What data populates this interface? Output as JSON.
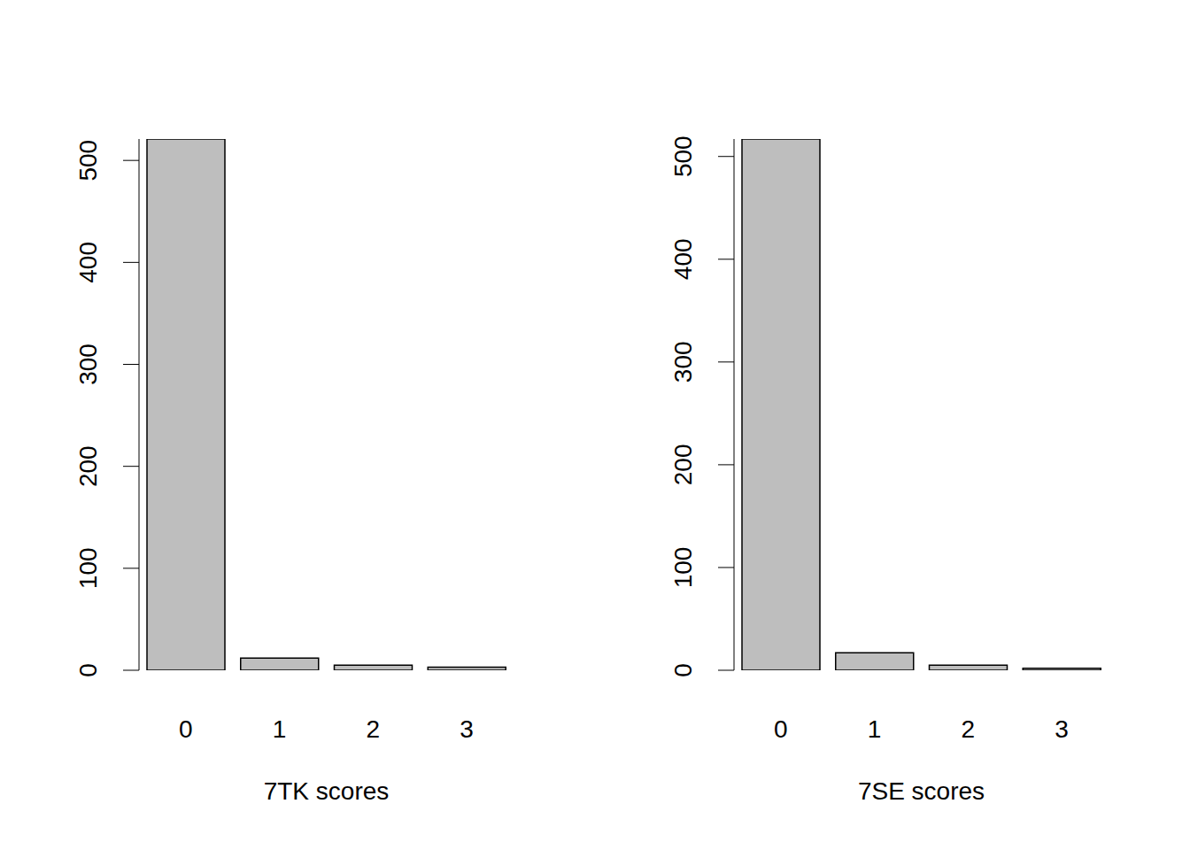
{
  "chart_data": [
    {
      "type": "bar",
      "xlabel": "7TK scores",
      "categories": [
        "0",
        "1",
        "2",
        "3"
      ],
      "values": [
        521,
        12,
        5,
        3
      ],
      "color": "#bebebe",
      "ylim": [
        0,
        521
      ],
      "yticks": [
        0,
        100,
        200,
        300,
        400,
        500
      ],
      "grid": false
    },
    {
      "type": "bar",
      "xlabel": "7SE scores",
      "categories": [
        "0",
        "1",
        "2",
        "3"
      ],
      "values": [
        517,
        17,
        5,
        2
      ],
      "color": "#bebebe",
      "ylim": [
        0,
        517
      ],
      "yticks": [
        0,
        100,
        200,
        300,
        400,
        500
      ],
      "grid": false
    }
  ]
}
